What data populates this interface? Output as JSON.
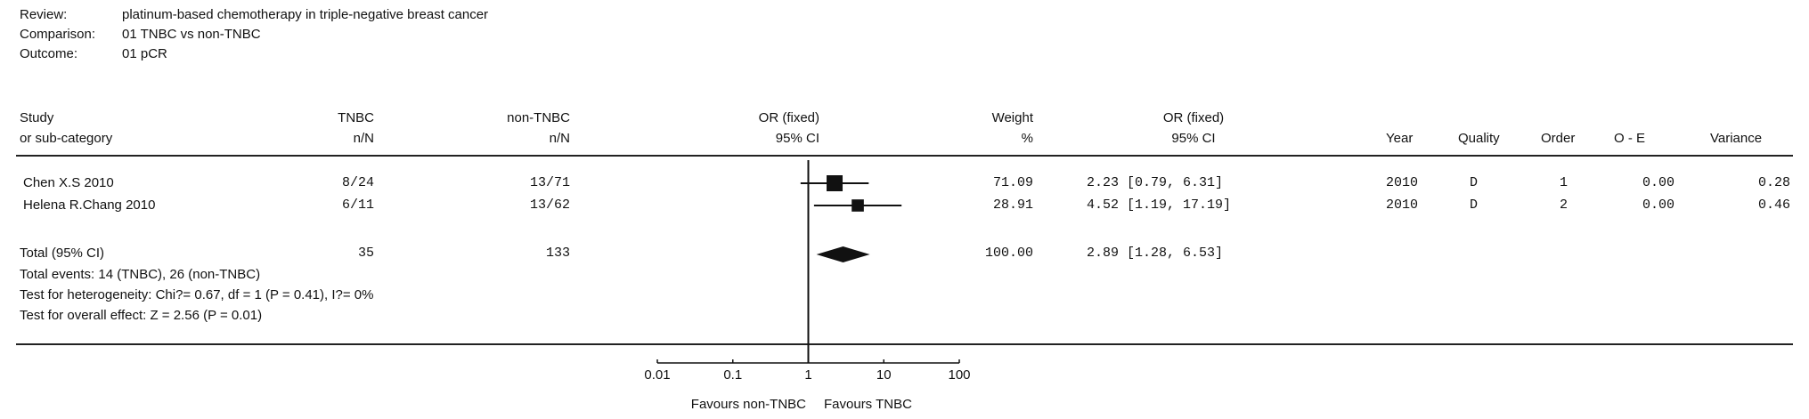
{
  "meta": [
    {
      "label": "Review:",
      "value": "platinum-based chemotherapy in triple-negative breast cancer"
    },
    {
      "label": "Comparison:",
      "value": "01 TNBC vs non-TNBC"
    },
    {
      "label": "Outcome:",
      "value": "01 pCR"
    }
  ],
  "headers": {
    "study": [
      "Study",
      "or sub-category"
    ],
    "tnbc": [
      "TNBC",
      "n/N"
    ],
    "nontnbc": [
      "non-TNBC",
      "n/N"
    ],
    "or_plot": [
      "OR (fixed)",
      "95% CI"
    ],
    "weight": [
      "Weight",
      "%"
    ],
    "or_text": [
      "OR (fixed)",
      "95% CI"
    ],
    "year": "Year",
    "quality": "Quality",
    "order": "Order",
    "oe": "O - E",
    "variance": "Variance"
  },
  "studies": [
    {
      "name": "Chen X.S 2010",
      "tnbc": "8/24",
      "nontnbc": "13/71",
      "weight": "71.09",
      "or_ci": "2.23 [0.79, 6.31]",
      "year": "2010",
      "quality": "D",
      "order": "1",
      "oe": "0.00",
      "variance": "0.28"
    },
    {
      "name": "Helena R.Chang 2010",
      "tnbc": "6/11",
      "nontnbc": "13/62",
      "weight": "28.91",
      "or_ci": "4.52 [1.19, 17.19]",
      "year": "2010",
      "quality": "D",
      "order": "2",
      "oe": "0.00",
      "variance": "0.46"
    }
  ],
  "total": {
    "name": "Total (95% CI)",
    "tnbc": "35",
    "nontnbc": "133",
    "weight": "100.00",
    "or_ci": "2.89 [1.28, 6.53]"
  },
  "footnotes": [
    "Total events: 14 (TNBC), 26 (non-TNBC)",
    "Test for heterogeneity: Chi?= 0.67, df = 1 (P = 0.41), I?= 0%",
    "Test for overall effect: Z = 2.56 (P = 0.01)"
  ],
  "axis_ticks": [
    "0.01",
    "0.1",
    "1",
    "10",
    "100"
  ],
  "favours_left": "Favours non-TNBC",
  "favours_right": "Favours TNBC",
  "chart_data": {
    "type": "forest",
    "scale": "log",
    "xlim": [
      0.01,
      100
    ],
    "xticks": [
      0.01,
      0.1,
      1,
      10,
      100
    ],
    "reference_line": 1,
    "points": [
      {
        "study": "Chen X.S 2010",
        "or": 2.23,
        "lo": 0.79,
        "hi": 6.31,
        "weight": 71.09
      },
      {
        "study": "Helena R.Chang 2010",
        "or": 4.52,
        "lo": 1.19,
        "hi": 17.19,
        "weight": 28.91
      }
    ],
    "pooled": {
      "or": 2.89,
      "lo": 1.28,
      "hi": 6.53
    }
  }
}
